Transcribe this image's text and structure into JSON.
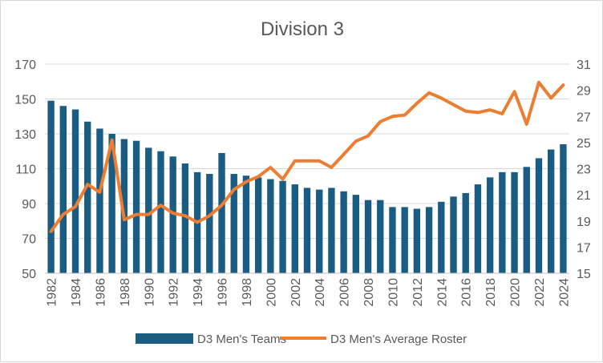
{
  "chart_data": {
    "type": "bar",
    "title": "Division 3",
    "years": [
      1982,
      1983,
      1984,
      1985,
      1986,
      1987,
      1988,
      1989,
      1990,
      1991,
      1992,
      1993,
      1994,
      1995,
      1996,
      1997,
      1998,
      1999,
      2000,
      2001,
      2002,
      2003,
      2004,
      2005,
      2006,
      2007,
      2008,
      2009,
      2010,
      2011,
      2012,
      2013,
      2014,
      2015,
      2016,
      2017,
      2018,
      2019,
      2020,
      2021,
      2022,
      2023,
      2024
    ],
    "x_tick_labels": [
      "1982",
      "1984",
      "1986",
      "1988",
      "1990",
      "1992",
      "1994",
      "1996",
      "1998",
      "2000",
      "2002",
      "2004",
      "2006",
      "2008",
      "2010",
      "2012",
      "2014",
      "2016",
      "2018",
      "2020",
      "2022",
      "2024"
    ],
    "series": [
      {
        "name": "D3 Men's Teams",
        "type": "bar",
        "axis": "left",
        "color": "#1b5c82",
        "values": [
          149,
          146,
          144,
          137,
          133,
          130,
          127,
          126,
          122,
          120,
          117,
          113,
          108,
          107,
          119,
          107,
          106,
          105,
          104,
          103,
          101,
          99,
          98,
          99,
          97,
          95,
          92,
          92,
          88,
          88,
          87,
          88,
          91,
          94,
          96,
          101,
          105,
          108,
          108,
          111,
          116,
          121,
          124
        ]
      },
      {
        "name": "D3 Men's Average Roster",
        "type": "line",
        "axis": "right",
        "color": "#ed7d31",
        "values": [
          18.2,
          19.5,
          20.1,
          21.8,
          21.2,
          25.2,
          19.1,
          19.5,
          19.5,
          20.2,
          19.6,
          19.4,
          18.9,
          19.4,
          20.2,
          21.4,
          22.0,
          22.4,
          23.1,
          22.2,
          23.6,
          23.6,
          23.6,
          23.1,
          24.1,
          25.1,
          25.5,
          26.6,
          27.0,
          27.1,
          28.0,
          28.8,
          28.4,
          27.9,
          27.4,
          27.3,
          27.5,
          27.2,
          28.9,
          26.4,
          29.6,
          28.4,
          29.4
        ]
      }
    ],
    "y_left": {
      "min": 50,
      "max": 170,
      "ticks": [
        50,
        70,
        90,
        110,
        130,
        150,
        170
      ]
    },
    "y_right": {
      "min": 15,
      "max": 31,
      "ticks": [
        15,
        17,
        19,
        21,
        23,
        25,
        27,
        29,
        31
      ]
    },
    "grid": true,
    "legend": "bottom"
  }
}
